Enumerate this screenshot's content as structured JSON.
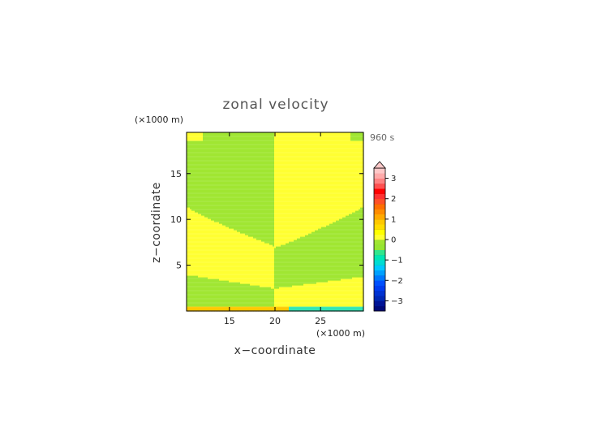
{
  "chart_data": {
    "type": "heatmap",
    "title": "zonal velocity",
    "time_label": "960 s",
    "xlabel": "x−coordinate",
    "ylabel": "z−coordinate",
    "x_unit": "(×1000 m)",
    "y_unit": "(×1000 m)",
    "xlim": [
      10.3,
      29.7
    ],
    "ylim": [
      0.0,
      19.5
    ],
    "x_ticks": [
      15,
      20,
      25
    ],
    "y_ticks": [
      5,
      10,
      15
    ],
    "colorbar": {
      "levels": [
        -3.5,
        -3.25,
        -3.0,
        -2.75,
        -2.5,
        -2.25,
        -2.0,
        -1.75,
        -1.5,
        -1.25,
        -1.0,
        -0.75,
        -0.5,
        -0.25,
        0.0,
        0.25,
        0.5,
        0.75,
        1.0,
        1.25,
        1.5,
        1.75,
        2.0,
        2.25,
        2.5,
        2.75,
        3.0,
        3.25,
        3.5
      ],
      "colors": [
        "#000a78",
        "#001496",
        "#0028b4",
        "#0032d2",
        "#003cf0",
        "#0050ff",
        "#0078ff",
        "#00a0ff",
        "#00c8ff",
        "#00dcd2",
        "#00e6b4",
        "#32e68c",
        "#96e632",
        "#a0e632",
        "#ffff32",
        "#ffff00",
        "#ffdc00",
        "#ffc800",
        "#ffaa00",
        "#ff8c00",
        "#ff6e00",
        "#ff5028",
        "#ff3232",
        "#ff0000",
        "#ff5050",
        "#ff8282",
        "#ffaaaa",
        "#ffc8c8"
      ],
      "tick_labels": [
        "3",
        "2",
        "1",
        "0",
        "−1",
        "−2",
        "−3"
      ],
      "tick_values": [
        3,
        2,
        1,
        0,
        -1,
        -2,
        -3
      ],
      "extend": "max"
    },
    "field": {
      "description_levels": "yellow = 0 to 0.25, green = -0.25 to 0",
      "divide_x": 20,
      "bottom_strip_top": 0.5
    }
  }
}
